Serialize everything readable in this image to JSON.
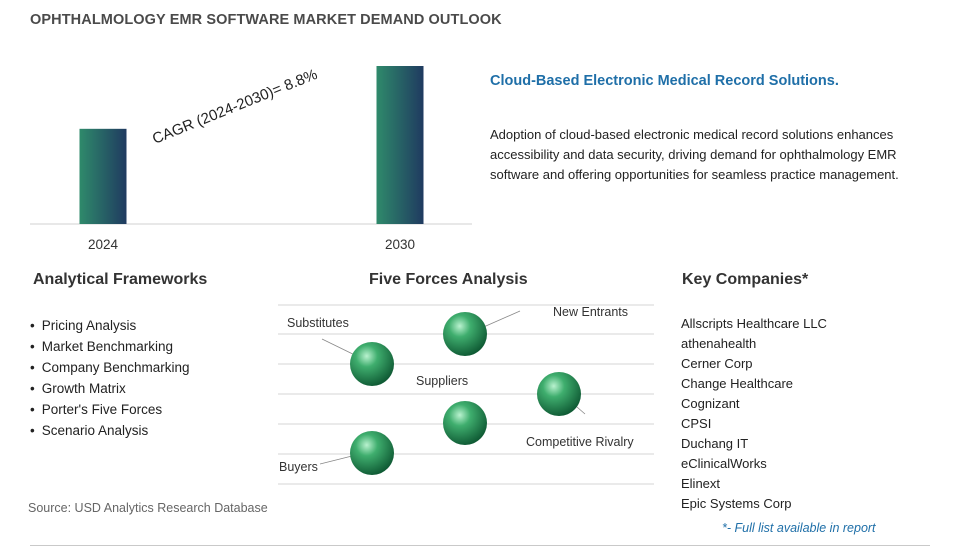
{
  "title": "OPHTHALMOLOGY EMR SOFTWARE MARKET DEMAND OUTLOOK",
  "chart_data": {
    "type": "bar",
    "categories": [
      "2024",
      "2030"
    ],
    "values": [
      1,
      1.66
    ],
    "annotation": "CAGR (2024-2030)=  8.8%",
    "colors": [
      "#2f8a6b",
      "#1f3a60"
    ]
  },
  "insight": {
    "title": "Cloud-Based Electronic Medical Record Solutions.",
    "body": "Adoption of cloud-based electronic medical record solutions enhances accessibility and data security, driving demand for ophthalmology EMR software and offering opportunities for seamless practice management."
  },
  "analytical_frameworks": {
    "heading": "Analytical Frameworks",
    "items": [
      "Pricing Analysis",
      "Market Benchmarking",
      "Company Benchmarking",
      "Growth Matrix",
      "Porter's Five Forces",
      "Scenario Analysis"
    ]
  },
  "five_forces": {
    "heading": "Five Forces Analysis",
    "labels": {
      "substitutes": "Substitutes",
      "new_entrants": "New Entrants",
      "suppliers": "Suppliers",
      "competitive_rivalry": "Competitive Rivalry",
      "buyers": "Buyers"
    }
  },
  "key_companies": {
    "heading": "Key Companies*",
    "items": [
      "Allscripts Healthcare LLC",
      "athenahealth",
      "Cerner Corp",
      "Change Healthcare",
      "Cognizant",
      "CPSI",
      "Duchang IT",
      "eClinicalWorks",
      "Elinext",
      "Epic Systems Corp"
    ],
    "note": "*- Full list available in report"
  },
  "source": "Source: USD Analytics Research Database"
}
